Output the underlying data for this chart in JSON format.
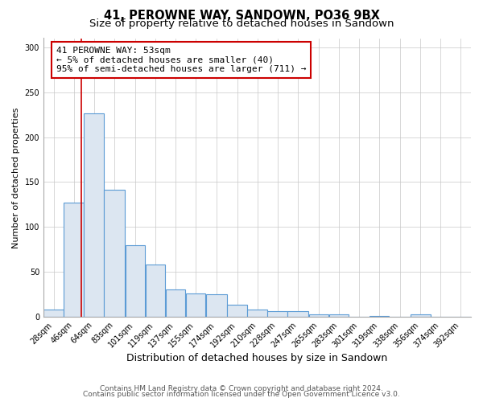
{
  "title": "41, PEROWNE WAY, SANDOWN, PO36 9BX",
  "subtitle": "Size of property relative to detached houses in Sandown",
  "xlabel": "Distribution of detached houses by size in Sandown",
  "ylabel": "Number of detached properties",
  "annotation_text": "41 PEROWNE WAY: 53sqm\n← 5% of detached houses are smaller (40)\n95% of semi-detached houses are larger (711) →",
  "property_size": 53,
  "bar_edge_color": "#5b9bd5",
  "bar_face_color": "#dce6f1",
  "vline_color": "#cc0000",
  "annotation_box_color": "#cc0000",
  "background_color": "#ffffff",
  "grid_color": "#c8c8c8",
  "categories": [
    "28sqm",
    "46sqm",
    "64sqm",
    "83sqm",
    "101sqm",
    "119sqm",
    "137sqm",
    "155sqm",
    "174sqm",
    "192sqm",
    "210sqm",
    "228sqm",
    "247sqm",
    "265sqm",
    "283sqm",
    "301sqm",
    "319sqm",
    "338sqm",
    "356sqm",
    "374sqm",
    "392sqm"
  ],
  "bin_edges": [
    19,
    37,
    55,
    73,
    92,
    110,
    128,
    146,
    164,
    183,
    201,
    219,
    237,
    256,
    274,
    292,
    310,
    328,
    347,
    365,
    383,
    401
  ],
  "values": [
    8,
    127,
    226,
    141,
    80,
    58,
    31,
    26,
    25,
    14,
    8,
    6,
    6,
    3,
    3,
    0,
    1,
    0,
    3,
    0,
    0
  ],
  "ylim": [
    0,
    310
  ],
  "yticks": [
    0,
    50,
    100,
    150,
    200,
    250,
    300
  ],
  "footer_lines": [
    "Contains HM Land Registry data © Crown copyright and database right 2024.",
    "Contains public sector information licensed under the Open Government Licence v3.0."
  ],
  "title_fontsize": 10.5,
  "subtitle_fontsize": 9.5,
  "xlabel_fontsize": 9,
  "ylabel_fontsize": 8,
  "tick_fontsize": 7,
  "footer_fontsize": 6.5,
  "annotation_fontsize": 8
}
